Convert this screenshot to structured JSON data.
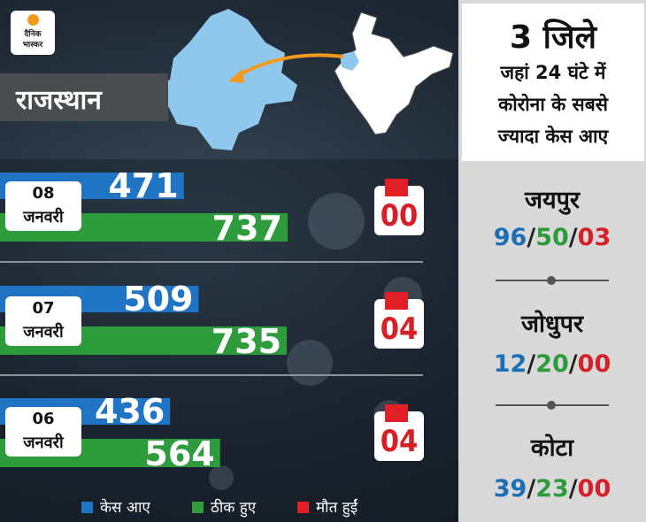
{
  "brand": {
    "line1": "दैनिक",
    "line2": "भास्कर"
  },
  "state_label": "राजस्थान",
  "colors": {
    "cases": "#1f74c3",
    "recovered": "#2e9b3d",
    "deaths": "#e21f26"
  },
  "chart_data": {
    "type": "bar",
    "categories": [
      "08 जनवरी",
      "07 जनवरी",
      "06 जनवरी"
    ],
    "series": [
      {
        "name": "केस आए",
        "values": [
          471,
          509,
          436
        ]
      },
      {
        "name": "ठीक हुए",
        "values": [
          737,
          735,
          564
        ]
      },
      {
        "name": "मौत हुईं",
        "values": [
          "00",
          "04",
          "04"
        ]
      }
    ],
    "rows": [
      {
        "date_day": "08",
        "date_month": "जनवरी",
        "cases": 471,
        "recovered": 737,
        "deaths": "00"
      },
      {
        "date_day": "07",
        "date_month": "जनवरी",
        "cases": 509,
        "recovered": 735,
        "deaths": "04"
      },
      {
        "date_day": "06",
        "date_month": "जनवरी",
        "cases": 436,
        "recovered": 564,
        "deaths": "04"
      }
    ],
    "legend": [
      "केस आए",
      "ठीक हुए",
      "मौत हुईं"
    ],
    "legend_position": "bottom"
  },
  "side_panel": {
    "heading": "3 जिले",
    "sub_lines": [
      "जहां 24 घंटे में",
      "कोरोना के सबसे",
      "ज्यादा केस आए"
    ],
    "districts": [
      {
        "name": "जयपुर",
        "cases": "96",
        "recovered": "50",
        "deaths": "03"
      },
      {
        "name": "जोधुपर",
        "cases": "12",
        "recovered": "20",
        "deaths": "00"
      },
      {
        "name": "कोटा",
        "cases": "39",
        "recovered": "23",
        "deaths": "00"
      }
    ]
  }
}
